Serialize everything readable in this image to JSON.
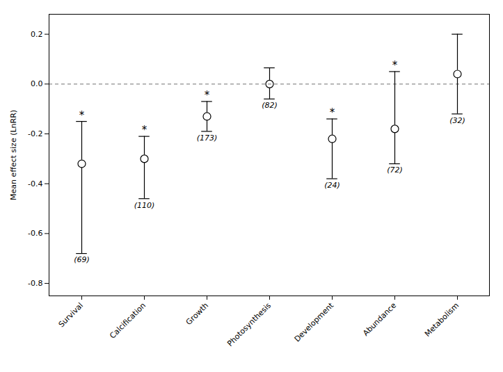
{
  "chart_data": {
    "type": "errorbar",
    "ylabel": "Mean effect size (LnRR)",
    "categories": [
      "Survival",
      "Calcification",
      "Growth",
      "Photosynthesis",
      "Development",
      "Abundance",
      "Metabolism"
    ],
    "values": [
      -0.32,
      -0.3,
      -0.13,
      0.0,
      -0.22,
      -0.18,
      0.04
    ],
    "ci_lower": [
      -0.68,
      -0.46,
      -0.19,
      -0.06,
      -0.38,
      -0.32,
      -0.12
    ],
    "ci_upper": [
      -0.15,
      -0.21,
      -0.07,
      0.065,
      -0.14,
      0.05,
      0.2
    ],
    "n_labels": [
      "(69)",
      "(110)",
      "(173)",
      "(82)",
      "(24)",
      "(72)",
      "(32)"
    ],
    "significance_labels": [
      "*",
      "*",
      "*",
      null,
      "*",
      "*",
      null
    ],
    "reference_line": 0,
    "ylim": [
      -0.85,
      0.28
    ],
    "yticks": [
      -0.8,
      -0.6,
      -0.4,
      -0.2,
      {
        "value": 0.0,
        "label": "0.0"
      },
      0.2
    ],
    "grid": false
  }
}
